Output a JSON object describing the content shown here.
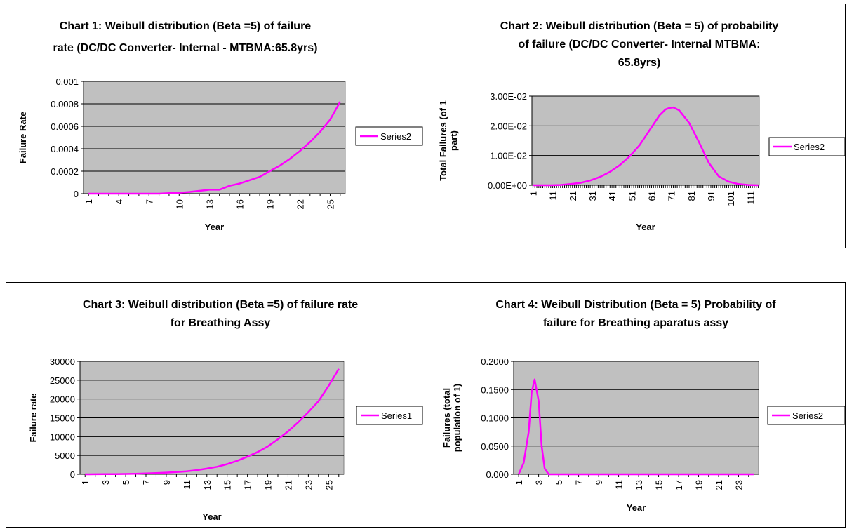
{
  "colors": {
    "plot_bg": "#c0c0c0",
    "grid": "#000000",
    "line": "#ff00ff"
  },
  "chart_data": [
    {
      "type": "line",
      "title_lines": [
        "Chart 1: Weibull distribution (Beta =5) of failure",
        "rate (DC/DC Converter- Internal - MTBMA:65.8yrs)"
      ],
      "xlabel": "Year",
      "ylabel_lines": [
        "Failure Rate"
      ],
      "x": [
        1,
        2,
        3,
        4,
        5,
        6,
        7,
        8,
        9,
        10,
        11,
        12,
        13,
        14,
        15,
        16,
        17,
        18,
        19,
        20,
        21,
        22,
        23,
        24,
        25,
        26
      ],
      "xticklabels": [
        "1",
        "4",
        "7",
        "10",
        "13",
        "16",
        "19",
        "22",
        "25"
      ],
      "ylim": [
        0,
        0.001
      ],
      "yticklabels": [
        "0",
        "0.0002",
        "0.0004",
        "0.0006",
        "0.0008",
        "0.001"
      ],
      "series": [
        {
          "name": "Series2",
          "values": [
            0,
            0,
            0,
            0,
            0,
            0,
            0,
            0,
            5e-06,
            8e-06,
            1.5e-05,
            2.5e-05,
            3.5e-05,
            3.5e-05,
            7e-05,
            9e-05,
            0.00012,
            0.00015,
            0.0002,
            0.00025,
            0.00031,
            0.00038,
            0.00046,
            0.00055,
            0.00066,
            0.00082
          ]
        }
      ],
      "legend_position": "right",
      "grid": true
    },
    {
      "type": "line",
      "title_lines": [
        "Chart 2: Weibull distribution (Beta = 5) of probability",
        "of failure (DC/DC Converter- Internal MTBMA:",
        "65.8yrs)"
      ],
      "xlabel": "Year",
      "ylabel_lines": [
        "Total Failures (of 1",
        "part)"
      ],
      "x_range": [
        1,
        115
      ],
      "xticklabels": [
        "1",
        "11",
        "21",
        "31",
        "41",
        "51",
        "61",
        "71",
        "81",
        "91",
        "101",
        "111"
      ],
      "ylim": [
        0,
        0.03
      ],
      "yticklabels": [
        "0.00E+00",
        "1.00E-02",
        "2.00E-02",
        "3.00E-02"
      ],
      "series": [
        {
          "name": "Series2",
          "x": [
            1,
            10,
            15,
            20,
            25,
            30,
            35,
            40,
            45,
            50,
            55,
            60,
            65,
            68,
            70,
            72,
            75,
            80,
            85,
            90,
            95,
            100,
            105,
            110,
            115
          ],
          "values": [
            0,
            0,
            0.0001,
            0.0004,
            0.0008,
            0.0016,
            0.0028,
            0.0045,
            0.0068,
            0.0098,
            0.0135,
            0.0185,
            0.0235,
            0.0255,
            0.026,
            0.0262,
            0.0252,
            0.021,
            0.0145,
            0.0075,
            0.003,
            0.0012,
            0.0004,
            0.0001,
            0
          ]
        }
      ],
      "legend_position": "right",
      "grid": true
    },
    {
      "type": "line",
      "title_lines": [
        "Chart 3: Weibull distribution (Beta =5) of failure rate",
        "for Breathing Assy"
      ],
      "xlabel": "Year",
      "ylabel_lines": [
        "Failure rate"
      ],
      "x": [
        1,
        2,
        3,
        4,
        5,
        6,
        7,
        8,
        9,
        10,
        11,
        12,
        13,
        14,
        15,
        16,
        17,
        18,
        19,
        20,
        21,
        22,
        23,
        24,
        25,
        26
      ],
      "xticklabels": [
        "1",
        "3",
        "5",
        "7",
        "9",
        "11",
        "13",
        "15",
        "17",
        "19",
        "21",
        "23",
        "25"
      ],
      "ylim": [
        0,
        30000
      ],
      "yticklabels": [
        "0",
        "5000",
        "10000",
        "15000",
        "20000",
        "25000",
        "30000"
      ],
      "series": [
        {
          "name": "Series1",
          "values": [
            0,
            10,
            30,
            60,
            100,
            150,
            230,
            330,
            450,
            600,
            800,
            1100,
            1500,
            2000,
            2700,
            3600,
            4700,
            5900,
            7400,
            9300,
            11400,
            13800,
            16500,
            19400,
            23500,
            28000
          ]
        }
      ],
      "legend_position": "right",
      "grid": true
    },
    {
      "type": "line",
      "title_lines": [
        "Chart 4: Weibull Distribution (Beta = 5) Probability of",
        "failure for Breathing aparatus assy"
      ],
      "xlabel": "Year",
      "ylabel_lines": [
        "Failures (total",
        "population of 1)"
      ],
      "x_range": [
        1,
        24.5
      ],
      "xticklabels": [
        "1",
        "3",
        "5",
        "7",
        "9",
        "11",
        "13",
        "15",
        "17",
        "19",
        "21",
        "23"
      ],
      "ylim": [
        0,
        0.2
      ],
      "yticklabels": [
        "0.000",
        "0.0500",
        "0.1000",
        "0.1500",
        "0.2000"
      ],
      "series": [
        {
          "name": "Series2",
          "x": [
            1,
            1.5,
            2,
            2.3,
            2.6,
            3,
            3.3,
            3.6,
            4,
            4.5,
            5,
            24.5
          ],
          "values": [
            0,
            0.02,
            0.075,
            0.145,
            0.168,
            0.13,
            0.05,
            0.01,
            0,
            0,
            0,
            0
          ]
        }
      ],
      "legend_position": "right",
      "grid": true
    }
  ]
}
